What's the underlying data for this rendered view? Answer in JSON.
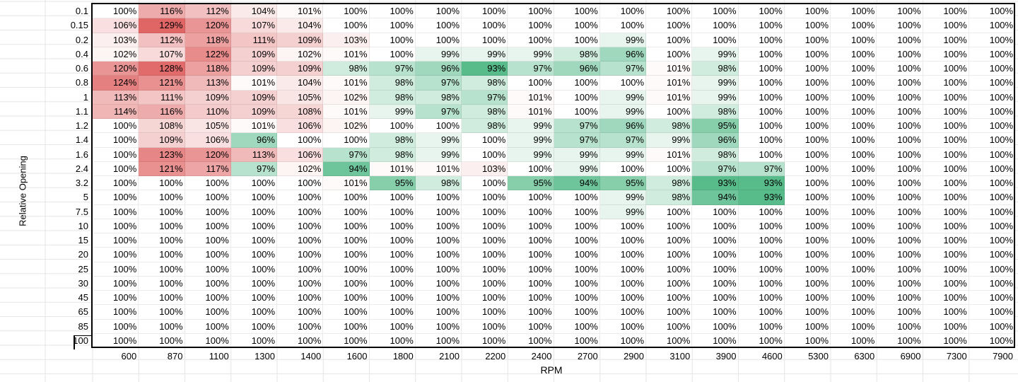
{
  "colors": {
    "high": "#e06666",
    "low": "#57bb8a",
    "mid": "#ffffff"
  },
  "chart_data": {
    "type": "heatmap",
    "xlabel": "RPM",
    "ylabel": "Relative Opening",
    "x": [
      "600",
      "870",
      "1100",
      "1300",
      "1400",
      "1600",
      "1800",
      "2100",
      "2200",
      "2400",
      "2700",
      "2900",
      "3100",
      "3900",
      "4600",
      "5300",
      "6300",
      "6900",
      "7300",
      "7900"
    ],
    "y": [
      "0.1",
      "0.15",
      "0.2",
      "0.4",
      "0.6",
      "0.8",
      "1",
      "1.1",
      "1.2",
      "1.4",
      "1.6",
      "2.4",
      "3.2",
      "5",
      "7.5",
      "10",
      "15",
      "20",
      "25",
      "30",
      "45",
      "65",
      "85",
      "100"
    ],
    "values": [
      [
        100,
        116,
        112,
        104,
        101,
        100,
        100,
        100,
        100,
        100,
        100,
        100,
        100,
        100,
        100,
        100,
        100,
        100,
        100,
        100
      ],
      [
        106,
        129,
        120,
        107,
        104,
        100,
        100,
        100,
        100,
        100,
        100,
        100,
        100,
        100,
        100,
        100,
        100,
        100,
        100,
        100
      ],
      [
        103,
        112,
        118,
        111,
        109,
        103,
        100,
        100,
        100,
        100,
        100,
        99,
        100,
        100,
        100,
        100,
        100,
        100,
        100,
        100
      ],
      [
        102,
        107,
        122,
        109,
        102,
        101,
        100,
        99,
        99,
        99,
        98,
        96,
        100,
        99,
        100,
        100,
        100,
        100,
        100,
        100
      ],
      [
        120,
        128,
        118,
        109,
        109,
        98,
        97,
        96,
        93,
        97,
        96,
        97,
        101,
        98,
        100,
        100,
        100,
        100,
        100,
        100
      ],
      [
        124,
        121,
        113,
        101,
        104,
        101,
        98,
        97,
        98,
        100,
        100,
        100,
        101,
        99,
        100,
        100,
        100,
        100,
        100,
        100
      ],
      [
        113,
        111,
        109,
        109,
        105,
        102,
        98,
        98,
        97,
        101,
        100,
        99,
        101,
        99,
        100,
        100,
        100,
        100,
        100,
        100
      ],
      [
        114,
        116,
        110,
        109,
        108,
        101,
        99,
        97,
        98,
        101,
        100,
        99,
        100,
        98,
        100,
        100,
        100,
        100,
        100,
        100
      ],
      [
        100,
        108,
        105,
        101,
        106,
        102,
        100,
        100,
        98,
        99,
        97,
        96,
        98,
        95,
        100,
        100,
        100,
        100,
        100,
        100
      ],
      [
        100,
        109,
        106,
        96,
        100,
        100,
        98,
        99,
        100,
        99,
        97,
        97,
        99,
        96,
        100,
        100,
        100,
        100,
        100,
        100
      ],
      [
        100,
        123,
        120,
        113,
        106,
        97,
        98,
        99,
        100,
        99,
        99,
        99,
        101,
        98,
        100,
        100,
        100,
        100,
        100,
        100
      ],
      [
        100,
        121,
        117,
        97,
        102,
        94,
        101,
        101,
        103,
        100,
        99,
        100,
        100,
        97,
        97,
        100,
        100,
        100,
        100,
        100
      ],
      [
        100,
        100,
        100,
        100,
        100,
        101,
        95,
        98,
        100,
        95,
        94,
        95,
        98,
        93,
        93,
        100,
        100,
        100,
        100,
        100
      ],
      [
        100,
        100,
        100,
        100,
        100,
        100,
        100,
        100,
        100,
        100,
        100,
        99,
        98,
        94,
        93,
        100,
        100,
        100,
        100,
        100
      ],
      [
        100,
        100,
        100,
        100,
        100,
        100,
        100,
        100,
        100,
        100,
        100,
        99,
        100,
        100,
        100,
        100,
        100,
        100,
        100,
        100
      ],
      [
        100,
        100,
        100,
        100,
        100,
        100,
        100,
        100,
        100,
        100,
        100,
        100,
        100,
        100,
        100,
        100,
        100,
        100,
        100,
        100
      ],
      [
        100,
        100,
        100,
        100,
        100,
        100,
        100,
        100,
        100,
        100,
        100,
        100,
        100,
        100,
        100,
        100,
        100,
        100,
        100,
        100
      ],
      [
        100,
        100,
        100,
        100,
        100,
        100,
        100,
        100,
        100,
        100,
        100,
        100,
        100,
        100,
        100,
        100,
        100,
        100,
        100,
        100
      ],
      [
        100,
        100,
        100,
        100,
        100,
        100,
        100,
        100,
        100,
        100,
        100,
        100,
        100,
        100,
        100,
        100,
        100,
        100,
        100,
        100
      ],
      [
        100,
        100,
        100,
        100,
        100,
        100,
        100,
        100,
        100,
        100,
        100,
        100,
        100,
        100,
        100,
        100,
        100,
        100,
        100,
        100
      ],
      [
        100,
        100,
        100,
        100,
        100,
        100,
        100,
        100,
        100,
        100,
        100,
        100,
        100,
        100,
        100,
        100,
        100,
        100,
        100,
        100
      ],
      [
        100,
        100,
        100,
        100,
        100,
        100,
        100,
        100,
        100,
        100,
        100,
        100,
        100,
        100,
        100,
        100,
        100,
        100,
        100,
        100
      ],
      [
        100,
        100,
        100,
        100,
        100,
        100,
        100,
        100,
        100,
        100,
        100,
        100,
        100,
        100,
        100,
        100,
        100,
        100,
        100,
        100
      ],
      [
        100,
        100,
        100,
        100,
        100,
        100,
        100,
        100,
        100,
        100,
        100,
        100,
        100,
        100,
        100,
        100,
        100,
        100,
        100,
        100
      ]
    ],
    "value_suffix": "%",
    "scale": {
      "min": 93,
      "mid": 100,
      "max": 129
    }
  }
}
